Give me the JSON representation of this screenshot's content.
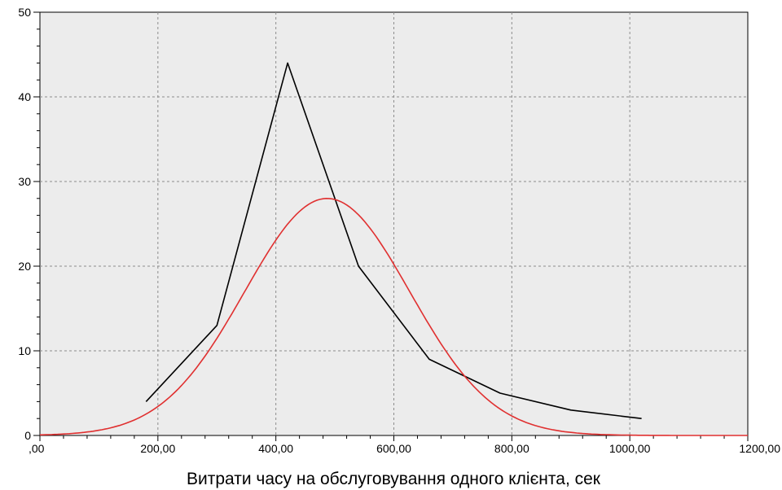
{
  "chart_data": {
    "type": "line",
    "title": "",
    "xlabel": "Витрати часу на обслуговування одного клієнта, сек",
    "ylabel": "",
    "xlim": [
      0,
      1200
    ],
    "ylim": [
      0,
      50
    ],
    "grid": true,
    "x_ticks": [
      {
        "value": 0,
        "label": ",00"
      },
      {
        "value": 200,
        "label": "200,00"
      },
      {
        "value": 400,
        "label": "400,00"
      },
      {
        "value": 600,
        "label": "600,00"
      },
      {
        "value": 800,
        "label": "800,00"
      },
      {
        "value": 1000,
        "label": "1000,00"
      },
      {
        "value": 1200,
        "label": "1200,00"
      }
    ],
    "y_ticks": [
      {
        "value": 0,
        "label": "0"
      },
      {
        "value": 10,
        "label": "10"
      },
      {
        "value": 20,
        "label": "20"
      },
      {
        "value": 30,
        "label": "30"
      },
      {
        "value": 40,
        "label": "40"
      },
      {
        "value": 50,
        "label": "50"
      }
    ],
    "series": [
      {
        "color": "#000000",
        "x": [
          180,
          300,
          420,
          540,
          660,
          780,
          900,
          1020
        ],
        "y": [
          4,
          13,
          44,
          20,
          9,
          5,
          3,
          2
        ]
      },
      {
        "color": "#e03030",
        "curve": "normal",
        "mean": 487,
        "sd": 140,
        "peak": 28
      }
    ]
  }
}
